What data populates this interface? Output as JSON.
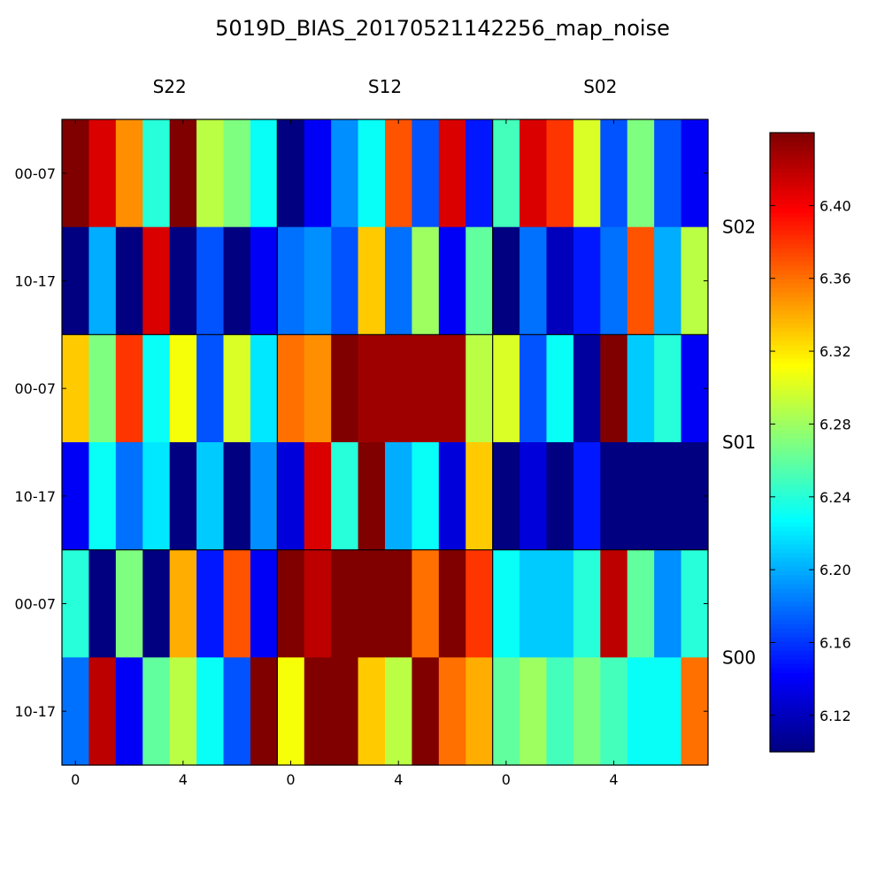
{
  "chart_data": {
    "type": "heatmap",
    "title": "5019D_BIAS_20170521142256_map_noise",
    "column_groups": [
      "S22",
      "S12",
      "S02"
    ],
    "row_groups": [
      "S02",
      "S01",
      "S00"
    ],
    "row_labels": [
      "00-07",
      "10-17",
      "00-07",
      "10-17",
      "00-07",
      "10-17"
    ],
    "x_tick_labels": [
      "0",
      "4"
    ],
    "x_tick_positions": [
      0,
      4
    ],
    "colorbar": {
      "colormap": "jet",
      "vmin": 6.1,
      "vmax": 6.44,
      "tick_labels": [
        "6.12",
        "6.16",
        "6.20",
        "6.24",
        "6.28",
        "6.32",
        "6.36",
        "6.40"
      ],
      "ticks": [
        6.12,
        6.16,
        6.2,
        6.24,
        6.28,
        6.32,
        6.36,
        6.4
      ]
    },
    "values": [
      [
        6.44,
        6.41,
        6.35,
        6.24,
        6.44,
        6.29,
        6.27,
        6.23,
        6.1,
        6.14,
        6.19,
        6.23,
        6.37,
        6.17,
        6.41,
        6.15,
        6.25,
        6.41,
        6.38,
        6.3,
        6.17,
        6.27,
        6.17,
        6.14
      ],
      [
        6.1,
        6.2,
        6.1,
        6.41,
        6.1,
        6.17,
        6.1,
        6.14,
        6.18,
        6.19,
        6.17,
        6.33,
        6.18,
        6.28,
        6.14,
        6.26,
        6.1,
        6.18,
        6.12,
        6.15,
        6.18,
        6.37,
        6.2,
        6.29
      ],
      [
        6.33,
        6.27,
        6.38,
        6.23,
        6.31,
        6.17,
        6.3,
        6.22,
        6.36,
        6.35,
        6.44,
        6.43,
        6.43,
        6.43,
        6.43,
        6.29,
        6.3,
        6.17,
        6.23,
        6.11,
        6.44,
        6.21,
        6.24,
        6.14
      ],
      [
        6.14,
        6.23,
        6.18,
        6.22,
        6.1,
        6.21,
        6.1,
        6.19,
        6.13,
        6.41,
        6.24,
        6.44,
        6.2,
        6.23,
        6.13,
        6.33,
        6.1,
        6.13,
        6.1,
        6.15,
        6.1,
        6.1,
        6.1,
        6.1
      ],
      [
        6.24,
        6.1,
        6.27,
        6.1,
        6.34,
        6.15,
        6.37,
        6.14,
        6.44,
        6.42,
        6.44,
        6.44,
        6.44,
        6.36,
        6.44,
        6.38,
        6.23,
        6.21,
        6.21,
        6.24,
        6.42,
        6.26,
        6.19,
        6.24
      ],
      [
        6.18,
        6.42,
        6.14,
        6.26,
        6.29,
        6.23,
        6.17,
        6.44,
        6.31,
        6.44,
        6.44,
        6.33,
        6.29,
        6.44,
        6.36,
        6.34,
        6.26,
        6.28,
        6.25,
        6.27,
        6.25,
        6.23,
        6.23,
        6.36
      ]
    ]
  }
}
